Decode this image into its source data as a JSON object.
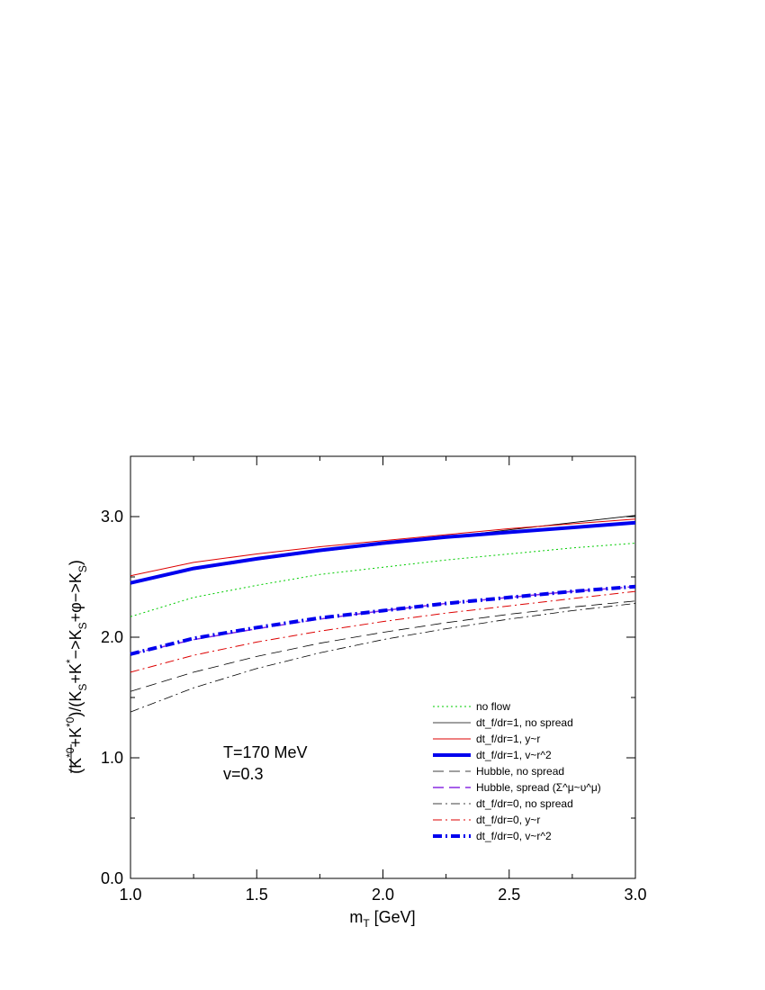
{
  "chart_data": {
    "type": "line",
    "xlabel": "m_T [GeV]",
    "ylabel": "(K*0bar + K*0)/(K_S + K* -> K_S + φ -> K_S)",
    "xlim": [
      1.0,
      3.0
    ],
    "ylim": [
      0.0,
      3.5
    ],
    "x_ticks": [
      "1.0",
      "1.5",
      "2.0",
      "2.5",
      "3.0"
    ],
    "y_ticks": [
      "0.0",
      "1.0",
      "2.0",
      "3.0"
    ],
    "grid": false,
    "legend_position": "bottom-right",
    "annotations": [
      "T=170 MeV",
      "v=0.3"
    ],
    "x": [
      1.0,
      1.25,
      1.5,
      1.75,
      2.0,
      2.25,
      2.5,
      2.75,
      3.0
    ],
    "series": [
      {
        "name": "no flow",
        "color": "#00cc00",
        "style": "dotted",
        "width": 1,
        "values": [
          2.17,
          2.33,
          2.43,
          2.52,
          2.58,
          2.64,
          2.69,
          2.74,
          2.78
        ]
      },
      {
        "name": "dt_f/dr=1, no spread",
        "color": "#000000",
        "style": "solid",
        "width": 0.8,
        "values": [
          2.44,
          2.56,
          2.64,
          2.71,
          2.77,
          2.83,
          2.89,
          2.95,
          3.01
        ]
      },
      {
        "name": "dt_f/dr=1, y~r",
        "color": "#dd0000",
        "style": "solid",
        "width": 1,
        "values": [
          2.51,
          2.62,
          2.69,
          2.75,
          2.8,
          2.85,
          2.9,
          2.94,
          2.98
        ]
      },
      {
        "name": "dt_f/dr=1, v~r^2",
        "color": "#0000ee",
        "style": "solid",
        "width": 4,
        "values": [
          2.45,
          2.57,
          2.65,
          2.72,
          2.78,
          2.83,
          2.87,
          2.91,
          2.95
        ]
      },
      {
        "name": "Hubble, no spread",
        "color": "#000000",
        "style": "longdash",
        "width": 0.8,
        "values": [
          1.55,
          1.71,
          1.84,
          1.95,
          2.04,
          2.12,
          2.19,
          2.25,
          2.3
        ]
      },
      {
        "name": "Hubble, spread (Σ^μ~υ^μ)",
        "color": "#8a2be2",
        "style": "longdash",
        "width": 1.5,
        "values": [
          1.86,
          1.98,
          2.07,
          2.15,
          2.22,
          2.28,
          2.33,
          2.38,
          2.42
        ]
      },
      {
        "name": "dt_f/dr=0, no spread",
        "color": "#000000",
        "style": "dashdot",
        "width": 0.8,
        "values": [
          1.38,
          1.58,
          1.74,
          1.87,
          1.98,
          2.07,
          2.15,
          2.22,
          2.28
        ]
      },
      {
        "name": "dt_f/dr=0, y~r",
        "color": "#dd0000",
        "style": "dashdot",
        "width": 1,
        "values": [
          1.71,
          1.85,
          1.96,
          2.05,
          2.13,
          2.2,
          2.26,
          2.32,
          2.38
        ]
      },
      {
        "name": "dt_f/dr=0, v~r^2",
        "color": "#0000ee",
        "style": "dashdot",
        "width": 4,
        "values": [
          1.86,
          1.99,
          2.08,
          2.16,
          2.22,
          2.28,
          2.33,
          2.38,
          2.42
        ]
      }
    ]
  }
}
